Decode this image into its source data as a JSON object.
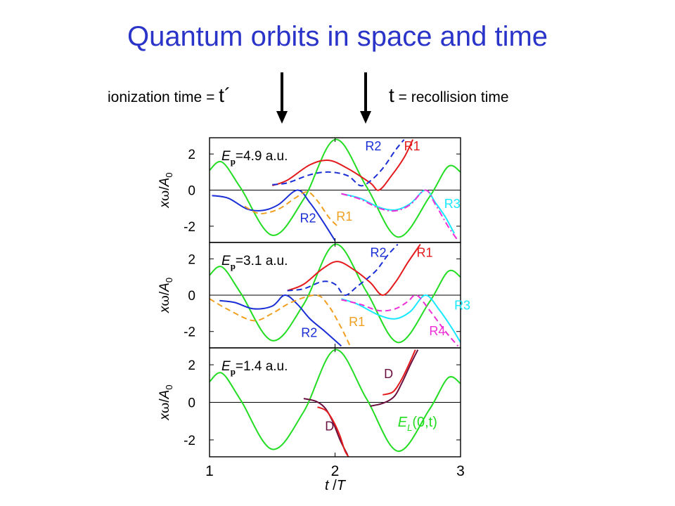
{
  "title": "Quantum orbits in space and time",
  "annotations": {
    "ionization": {
      "prefix": "ionization time = ",
      "symbol": "t´"
    },
    "recollision": {
      "symbol": "t",
      "suffix": " = recollision time"
    }
  },
  "colors": {
    "title": "#2b34c8",
    "field": "#22dd22",
    "R1_red": "#e41a1c",
    "R1_orange": "#f0a020",
    "R2_blue": "#1a2ed6",
    "R3_cyan": "#18e8ff",
    "R4_magenta": "#ee2ed6",
    "D_maroon": "#6a1040"
  },
  "chart_data": [
    {
      "type": "line",
      "panel_label": "E_p=4.9 a.u.",
      "label_parts": {
        "E": "E",
        "sub": "p",
        "value": "=4.9 a.u."
      },
      "xlabel": "",
      "ylabel": "xω/A₀",
      "ylabel_parts": {
        "a": "x",
        "b": "ω",
        "c": "/",
        "d": "A",
        "e": "0"
      },
      "xlim": [
        1,
        3
      ],
      "ylim": [
        -2.9,
        2.9
      ],
      "yticks": [
        "2",
        "0",
        "-2"
      ],
      "ytick_values": [
        2,
        0,
        -2
      ],
      "curve_labels": [
        {
          "text": "R2",
          "color": "#1a2ed6",
          "x": 2.24,
          "y": 2.2
        },
        {
          "text": "R1",
          "color": "#e41a1c",
          "x": 2.55,
          "y": 2.2
        },
        {
          "text": "R2",
          "color": "#1a2ed6",
          "x": 1.72,
          "y": -1.8
        },
        {
          "text": "R1",
          "color": "#f0a020",
          "x": 2.01,
          "y": -1.7
        },
        {
          "text": "R3",
          "color": "#18e8ff",
          "x": 2.87,
          "y": -1.0
        }
      ],
      "series": [
        {
          "color": "#22dd22",
          "dash": "",
          "points": [
            [
              1,
              1.1
            ],
            [
              1.1,
              1.55
            ],
            [
              1.25,
              0.1
            ],
            [
              1.5,
              -2.5
            ],
            [
              1.75,
              -0.5
            ],
            [
              2,
              2.8
            ],
            [
              2.25,
              0.2
            ],
            [
              2.5,
              -2.6
            ],
            [
              2.75,
              -0.4
            ],
            [
              2.9,
              1.3
            ],
            [
              3,
              1.0
            ]
          ]
        },
        {
          "color": "#e41a1c",
          "dash": "",
          "points": [
            [
              1.5,
              0.25
            ],
            [
              1.62,
              0.55
            ],
            [
              1.8,
              1.4
            ],
            [
              1.95,
              1.65
            ],
            [
              2.1,
              1.2
            ],
            [
              2.28,
              0.4
            ],
            [
              2.35,
              0.0
            ],
            [
              2.45,
              0.8
            ],
            [
              2.55,
              1.8
            ],
            [
              2.62,
              2.8
            ]
          ]
        },
        {
          "color": "#1a2ed6",
          "dash": "8,5",
          "points": [
            [
              1.5,
              0.3
            ],
            [
              1.62,
              0.4
            ],
            [
              1.8,
              0.85
            ],
            [
              1.95,
              1.0
            ],
            [
              2.1,
              0.8
            ],
            [
              2.2,
              0.25
            ],
            [
              2.28,
              0.5
            ],
            [
              2.38,
              1.2
            ],
            [
              2.48,
              2.2
            ],
            [
              2.55,
              2.8
            ]
          ]
        },
        {
          "color": "#1a2ed6",
          "dash": "",
          "points": [
            [
              1.02,
              -0.3
            ],
            [
              1.15,
              -0.45
            ],
            [
              1.3,
              -1.05
            ],
            [
              1.43,
              -1.12
            ],
            [
              1.55,
              -0.8
            ],
            [
              1.7,
              0.0
            ],
            [
              1.8,
              -0.7
            ],
            [
              1.9,
              -1.7
            ],
            [
              2.0,
              -2.8
            ]
          ]
        },
        {
          "color": "#f0a020",
          "dash": "8,5",
          "points": [
            [
              1.28,
              -0.9
            ],
            [
              1.4,
              -1.3
            ],
            [
              1.55,
              -1.05
            ],
            [
              1.68,
              -0.45
            ],
            [
              1.78,
              -0.1
            ],
            [
              1.86,
              -0.6
            ],
            [
              1.95,
              -1.5
            ],
            [
              2.02,
              -2.0
            ]
          ]
        },
        {
          "color": "#18e8ff",
          "dash": "",
          "points": [
            [
              2.05,
              -0.2
            ],
            [
              2.2,
              -0.45
            ],
            [
              2.35,
              -0.95
            ],
            [
              2.48,
              -1.1
            ],
            [
              2.6,
              -0.75
            ],
            [
              2.72,
              0.0
            ],
            [
              2.8,
              -0.7
            ],
            [
              2.88,
              -1.5
            ],
            [
              2.95,
              -2.4
            ]
          ]
        },
        {
          "color": "#ee2ed6",
          "dash": "9,4,2,4",
          "points": [
            [
              2.05,
              -0.2
            ],
            [
              2.2,
              -0.5
            ],
            [
              2.35,
              -1.0
            ],
            [
              2.48,
              -1.15
            ],
            [
              2.6,
              -0.8
            ],
            [
              2.72,
              0.0
            ],
            [
              2.8,
              -0.8
            ],
            [
              2.9,
              -2.0
            ],
            [
              2.98,
              -2.8
            ]
          ]
        }
      ]
    },
    {
      "type": "line",
      "panel_label": "E_p=3.1 a.u.",
      "label_parts": {
        "E": "E",
        "sub": "p",
        "value": "=3.1 a.u."
      },
      "xlabel": "",
      "ylabel": "xω/A₀",
      "ylabel_parts": {
        "a": "x",
        "b": "ω",
        "c": "/",
        "d": "A",
        "e": "0"
      },
      "xlim": [
        1,
        3
      ],
      "ylim": [
        -2.9,
        2.9
      ],
      "yticks": [
        "2",
        "0",
        "-2"
      ],
      "ytick_values": [
        2,
        0,
        -2
      ],
      "curve_labels": [
        {
          "text": "R2",
          "color": "#1a2ed6",
          "x": 2.28,
          "y": 2.1
        },
        {
          "text": "R1",
          "color": "#e41a1c",
          "x": 2.65,
          "y": 2.1
        },
        {
          "text": "R2",
          "color": "#1a2ed6",
          "x": 1.73,
          "y": -2.3
        },
        {
          "text": "R1",
          "color": "#f0a020",
          "x": 2.11,
          "y": -1.7
        },
        {
          "text": "R3",
          "color": "#18e8ff",
          "x": 2.95,
          "y": -0.8
        },
        {
          "text": "R4",
          "color": "#ee2ed6",
          "x": 2.75,
          "y": -2.2
        }
      ],
      "series": [
        {
          "color": "#22dd22",
          "dash": "",
          "points": [
            [
              1,
              1.1
            ],
            [
              1.1,
              1.55
            ],
            [
              1.25,
              0.1
            ],
            [
              1.5,
              -2.5
            ],
            [
              1.75,
              -0.5
            ],
            [
              2,
              2.8
            ],
            [
              2.25,
              0.2
            ],
            [
              2.5,
              -2.6
            ],
            [
              2.75,
              -0.4
            ],
            [
              2.9,
              1.3
            ],
            [
              3,
              1.0
            ]
          ]
        },
        {
          "color": "#e41a1c",
          "dash": "",
          "points": [
            [
              1.62,
              0.25
            ],
            [
              1.75,
              0.6
            ],
            [
              1.9,
              1.45
            ],
            [
              2.02,
              1.85
            ],
            [
              2.15,
              1.4
            ],
            [
              2.28,
              0.7
            ],
            [
              2.38,
              0.0
            ],
            [
              2.48,
              0.7
            ],
            [
              2.58,
              1.8
            ],
            [
              2.68,
              2.8
            ]
          ]
        },
        {
          "color": "#1a2ed6",
          "dash": "8,5",
          "points": [
            [
              1.62,
              0.25
            ],
            [
              1.75,
              0.35
            ],
            [
              1.9,
              0.75
            ],
            [
              2.0,
              0.6
            ],
            [
              2.08,
              0.0
            ],
            [
              2.18,
              0.5
            ],
            [
              2.32,
              1.3
            ],
            [
              2.42,
              2.2
            ],
            [
              2.5,
              2.8
            ]
          ]
        },
        {
          "color": "#1a2ed6",
          "dash": "",
          "points": [
            [
              1.08,
              -0.3
            ],
            [
              1.2,
              -0.4
            ],
            [
              1.35,
              -0.75
            ],
            [
              1.5,
              -0.6
            ],
            [
              1.6,
              0.0
            ],
            [
              1.7,
              -0.5
            ],
            [
              1.8,
              -1.3
            ],
            [
              1.92,
              -2.0
            ],
            [
              2.05,
              -2.8
            ]
          ]
        },
        {
          "color": "#f0a020",
          "dash": "8,5",
          "points": [
            [
              1.0,
              -0.2
            ],
            [
              1.15,
              -0.8
            ],
            [
              1.35,
              -1.4
            ],
            [
              1.5,
              -1.0
            ],
            [
              1.65,
              -0.4
            ],
            [
              1.85,
              0.0
            ],
            [
              1.95,
              -0.6
            ],
            [
              2.05,
              -1.8
            ],
            [
              2.12,
              -2.8
            ]
          ]
        },
        {
          "color": "#18e8ff",
          "dash": "",
          "points": [
            [
              2.05,
              -0.2
            ],
            [
              2.18,
              -0.5
            ],
            [
              2.35,
              -1.1
            ],
            [
              2.48,
              -1.3
            ],
            [
              2.6,
              -0.9
            ],
            [
              2.72,
              0.0
            ],
            [
              2.83,
              -0.8
            ],
            [
              2.93,
              -1.8
            ],
            [
              3.0,
              -2.6
            ]
          ]
        },
        {
          "color": "#ee2ed6",
          "dash": "8,5",
          "points": [
            [
              2.05,
              -0.25
            ],
            [
              2.2,
              -0.5
            ],
            [
              2.35,
              -0.85
            ],
            [
              2.48,
              -0.75
            ],
            [
              2.58,
              -0.35
            ],
            [
              2.65,
              0.0
            ],
            [
              2.75,
              -0.8
            ],
            [
              2.88,
              -2.0
            ],
            [
              2.98,
              -2.8
            ]
          ]
        }
      ]
    },
    {
      "type": "line",
      "panel_label": "E_p=1.4 a.u.",
      "label_parts": {
        "E": "E",
        "sub": "p",
        "value": "=1.4 a.u."
      },
      "xlabel": "t / T",
      "xlabel_parts": {
        "t": "t",
        "slash": " /",
        "T": "T"
      },
      "ylabel": "xω/A₀",
      "ylabel_parts": {
        "a": "x",
        "b": "ω",
        "c": "/",
        "d": "A",
        "e": "0"
      },
      "xlim": [
        1,
        3
      ],
      "ylim": [
        -2.9,
        2.9
      ],
      "xticks": [
        "1",
        "2",
        "3"
      ],
      "xtick_values": [
        1,
        2,
        3
      ],
      "yticks": [
        "2",
        "0",
        "-2"
      ],
      "ytick_values": [
        2,
        0,
        -2
      ],
      "curve_labels": [
        {
          "text": "D",
          "color": "#6a1040",
          "x": 2.39,
          "y": 1.3
        },
        {
          "text": "D",
          "color": "#6a1040",
          "x": 1.92,
          "y": -1.5
        }
      ],
      "field_label": {
        "E": "E",
        "sub": "L",
        "arg": "(0,t)",
        "color": "#22dd22",
        "x": 2.5,
        "y": -1.3
      },
      "series": [
        {
          "color": "#22dd22",
          "dash": "",
          "points": [
            [
              1,
              1.1
            ],
            [
              1.1,
              1.55
            ],
            [
              1.25,
              0.1
            ],
            [
              1.5,
              -2.5
            ],
            [
              1.75,
              -0.5
            ],
            [
              2,
              2.8
            ],
            [
              2.25,
              0.2
            ],
            [
              2.5,
              -2.6
            ],
            [
              2.75,
              -0.4
            ],
            [
              2.9,
              1.3
            ],
            [
              3,
              1.0
            ]
          ]
        },
        {
          "color": "#6a1040",
          "dash": "",
          "points": [
            [
              1.75,
              0.2
            ],
            [
              1.85,
              0.05
            ],
            [
              1.92,
              -0.3
            ],
            [
              1.98,
              -1.0
            ],
            [
              2.04,
              -2.0
            ],
            [
              2.1,
              -2.8
            ]
          ]
        },
        {
          "color": "#e41a1c",
          "dash": "",
          "points": [
            [
              1.86,
              -0.25
            ],
            [
              1.93,
              -0.45
            ],
            [
              1.99,
              -1.05
            ],
            [
              2.04,
              -1.8
            ],
            [
              2.08,
              -2.6
            ],
            [
              2.12,
              -3.0
            ]
          ]
        },
        {
          "color": "#6a1040",
          "dash": "",
          "points": [
            [
              2.28,
              -0.2
            ],
            [
              2.38,
              -0.05
            ],
            [
              2.47,
              0.3
            ],
            [
              2.53,
              1.0
            ],
            [
              2.6,
              2.0
            ],
            [
              2.66,
              2.8
            ]
          ]
        },
        {
          "color": "#e41a1c",
          "dash": "",
          "points": [
            [
              2.38,
              0.4
            ],
            [
              2.46,
              0.55
            ],
            [
              2.52,
              1.1
            ],
            [
              2.58,
              1.9
            ],
            [
              2.64,
              2.8
            ]
          ]
        }
      ]
    }
  ]
}
